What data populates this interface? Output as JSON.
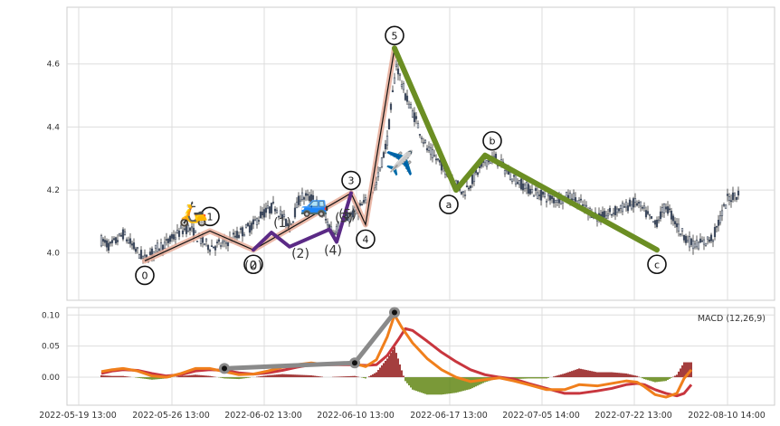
{
  "chart_data": {
    "type": "candlestick",
    "x_ticks": [
      "2022-05-19 13:00",
      "2022-05-26 13:00",
      "2022-06-02 13:00",
      "2022-06-10 13:00",
      "2022-06-17 13:00",
      "2022-07-05 14:00",
      "2022-07-22 13:00",
      "2022-08-10 14:00"
    ],
    "price_panel": {
      "ylim": [
        3.85,
        4.78
      ],
      "y_ticks": [
        4.0,
        4.2,
        4.4,
        4.6
      ],
      "y_tick_labels": [
        "4.0",
        "4.2",
        "4.4",
        "4.6"
      ],
      "grid": true,
      "colors": {
        "up": "#ffffff",
        "down": "#3f4b5f",
        "wick": "#333333"
      },
      "candle_path": [
        [
          0,
          4.04
        ],
        [
          5,
          4.02
        ],
        [
          12,
          4.06
        ],
        [
          19,
          4.01
        ],
        [
          24,
          3.98
        ],
        [
          32,
          4.02
        ],
        [
          36,
          4.03
        ],
        [
          44,
          4.07
        ],
        [
          48,
          4.08
        ],
        [
          55,
          4.04
        ],
        [
          60,
          4.02
        ],
        [
          68,
          4.03
        ],
        [
          76,
          4.06
        ],
        [
          84,
          4.09
        ],
        [
          88,
          4.12
        ],
        [
          96,
          4.15
        ],
        [
          104,
          4.08
        ],
        [
          110,
          4.18
        ],
        [
          118,
          4.17
        ],
        [
          122,
          4.12
        ],
        [
          128,
          4.07
        ],
        [
          138,
          4.12
        ],
        [
          146,
          4.16
        ],
        [
          152,
          4.22
        ],
        [
          158,
          4.36
        ],
        [
          163,
          4.6
        ],
        [
          168,
          4.5
        ],
        [
          174,
          4.42
        ],
        [
          180,
          4.33
        ],
        [
          188,
          4.28
        ],
        [
          194,
          4.24
        ],
        [
          200,
          4.19
        ],
        [
          206,
          4.24
        ],
        [
          212,
          4.29
        ],
        [
          218,
          4.3
        ],
        [
          224,
          4.26
        ],
        [
          232,
          4.22
        ],
        [
          240,
          4.19
        ],
        [
          250,
          4.17
        ],
        [
          260,
          4.18
        ],
        [
          268,
          4.14
        ],
        [
          276,
          4.11
        ],
        [
          286,
          4.14
        ],
        [
          296,
          4.16
        ],
        [
          306,
          4.09
        ],
        [
          312,
          4.15
        ],
        [
          320,
          4.07
        ],
        [
          326,
          4.03
        ],
        [
          332,
          4.03
        ],
        [
          338,
          4.05
        ],
        [
          346,
          4.17
        ],
        [
          352,
          4.19
        ]
      ],
      "elliptic_waves": [
        {
          "degree": "primary",
          "color": "#e8ad9a",
          "points": [
            [
              24,
              3.975
            ],
            [
              60,
              4.07
            ],
            [
              84,
              4.01
            ],
            [
              138,
              4.19
            ],
            [
              146,
              4.09
            ],
            [
              162,
              4.65
            ]
          ],
          "labels": [
            "0",
            "1",
            "2",
            "3",
            "4",
            "5"
          ]
        },
        {
          "degree": "intermediate",
          "color": "#5b2a86",
          "points": [
            [
              84,
              4.01
            ],
            [
              94,
              4.065
            ],
            [
              104,
              4.02
            ],
            [
              126,
              4.075
            ],
            [
              130,
              4.035
            ],
            [
              138,
              4.19
            ]
          ],
          "labels": [
            "(0)",
            "(1)",
            "(2)",
            "(3)",
            "(4)",
            "(5)"
          ]
        },
        {
          "degree": "corrective",
          "color": "#6b8e23",
          "points": [
            [
              162,
              4.65
            ],
            [
              196,
              4.2
            ],
            [
              212,
              4.31
            ],
            [
              307,
              4.01
            ]
          ],
          "labels": [
            "5",
            "a",
            "b",
            "c"
          ]
        }
      ],
      "annotations": [
        {
          "label": "scooter",
          "glyph": "🛵",
          "x": 51,
          "y": 4.1
        },
        {
          "label": "car",
          "glyph": "🚙",
          "x": 118,
          "y": 4.13
        },
        {
          "label": "airplane",
          "glyph": "✈️",
          "x": 165,
          "y": 4.26
        }
      ]
    },
    "macd_panel": {
      "title": "MACD (12,26,9)",
      "ylim": [
        -0.045,
        0.112
      ],
      "y_ticks": [
        0.0,
        0.05,
        0.1
      ],
      "y_tick_labels": [
        "0.00",
        "0.05",
        "0.10"
      ],
      "colors": {
        "macd": "#f07f1c",
        "signal": "#c8363e",
        "hist_pos": "#9b2a2a",
        "hist_neg": "#6b8e23"
      },
      "macd": [
        [
          0,
          0.009
        ],
        [
          6,
          0.012
        ],
        [
          12,
          0.014
        ],
        [
          20,
          0.01
        ],
        [
          28,
          0.002
        ],
        [
          36,
          0.0
        ],
        [
          44,
          0.006
        ],
        [
          52,
          0.014
        ],
        [
          60,
          0.014
        ],
        [
          68,
          0.009
        ],
        [
          76,
          0.004
        ],
        [
          84,
          0.005
        ],
        [
          92,
          0.01
        ],
        [
          100,
          0.016
        ],
        [
          108,
          0.02
        ],
        [
          116,
          0.023
        ],
        [
          124,
          0.02
        ],
        [
          132,
          0.021
        ],
        [
          140,
          0.022
        ],
        [
          146,
          0.017
        ],
        [
          152,
          0.028
        ],
        [
          158,
          0.065
        ],
        [
          162,
          0.1
        ],
        [
          166,
          0.08
        ],
        [
          172,
          0.055
        ],
        [
          180,
          0.03
        ],
        [
          188,
          0.012
        ],
        [
          196,
          0.0
        ],
        [
          204,
          -0.007
        ],
        [
          212,
          -0.004
        ],
        [
          220,
          -0.001
        ],
        [
          228,
          -0.006
        ],
        [
          236,
          -0.012
        ],
        [
          246,
          -0.02
        ],
        [
          256,
          -0.02
        ],
        [
          264,
          -0.012
        ],
        [
          274,
          -0.014
        ],
        [
          282,
          -0.01
        ],
        [
          290,
          -0.006
        ],
        [
          296,
          -0.008
        ],
        [
          300,
          -0.015
        ],
        [
          306,
          -0.028
        ],
        [
          312,
          -0.032
        ],
        [
          318,
          -0.026
        ],
        [
          322,
          -0.002
        ],
        [
          326,
          0.012
        ]
      ],
      "signal": [
        [
          0,
          0.006
        ],
        [
          6,
          0.01
        ],
        [
          12,
          0.012
        ],
        [
          20,
          0.011
        ],
        [
          28,
          0.006
        ],
        [
          36,
          0.002
        ],
        [
          44,
          0.004
        ],
        [
          52,
          0.01
        ],
        [
          60,
          0.012
        ],
        [
          68,
          0.011
        ],
        [
          76,
          0.007
        ],
        [
          84,
          0.005
        ],
        [
          92,
          0.007
        ],
        [
          100,
          0.011
        ],
        [
          108,
          0.016
        ],
        [
          116,
          0.02
        ],
        [
          124,
          0.02
        ],
        [
          132,
          0.02
        ],
        [
          140,
          0.02
        ],
        [
          146,
          0.019
        ],
        [
          152,
          0.02
        ],
        [
          158,
          0.035
        ],
        [
          164,
          0.06
        ],
        [
          168,
          0.078
        ],
        [
          172,
          0.075
        ],
        [
          180,
          0.058
        ],
        [
          188,
          0.04
        ],
        [
          196,
          0.025
        ],
        [
          204,
          0.012
        ],
        [
          212,
          0.004
        ],
        [
          220,
          0.0
        ],
        [
          228,
          -0.003
        ],
        [
          236,
          -0.01
        ],
        [
          246,
          -0.018
        ],
        [
          256,
          -0.026
        ],
        [
          264,
          -0.026
        ],
        [
          274,
          -0.022
        ],
        [
          282,
          -0.018
        ],
        [
          290,
          -0.012
        ],
        [
          296,
          -0.01
        ],
        [
          300,
          -0.012
        ],
        [
          306,
          -0.02
        ],
        [
          312,
          -0.026
        ],
        [
          318,
          -0.03
        ],
        [
          322,
          -0.026
        ],
        [
          326,
          -0.012
        ]
      ],
      "annotation_path": [
        [
          68,
          0.014
        ],
        [
          140,
          0.023
        ],
        [
          162,
          0.104
        ]
      ]
    }
  }
}
